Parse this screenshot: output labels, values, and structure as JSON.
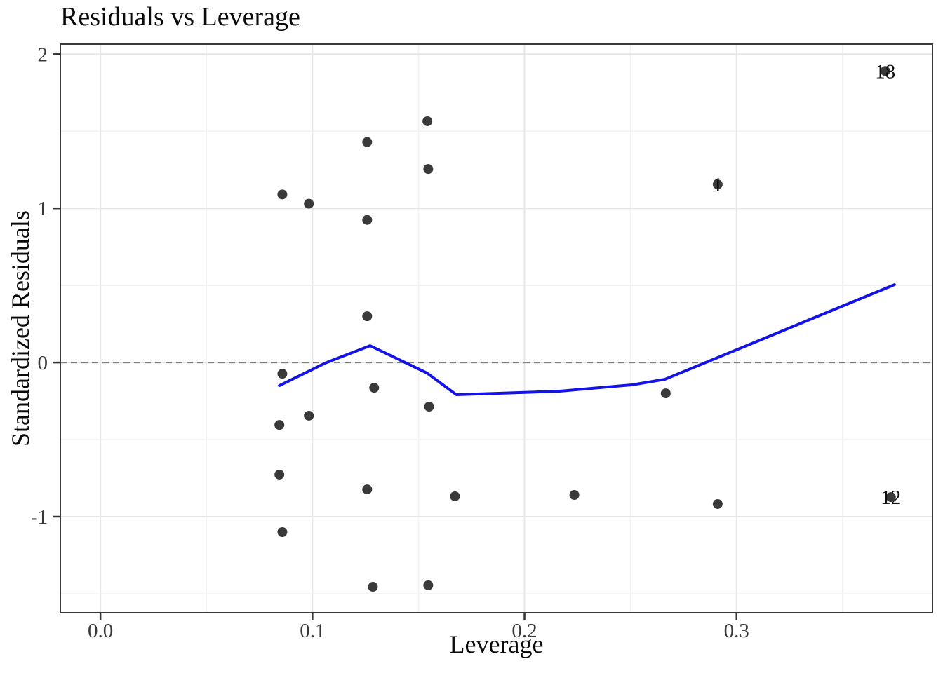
{
  "title": "Residuals vs Leverage",
  "axes": {
    "x_title": "Leverage",
    "y_title": "Standardized Residuals"
  },
  "chart_data": {
    "type": "scatter",
    "title": "Residuals vs Leverage",
    "xlabel": "Leverage",
    "ylabel": "Standardized Residuals",
    "xlim": [
      -0.0189,
      0.3924
    ],
    "ylim": [
      -1.623,
      2.065
    ],
    "grid": true,
    "x_ticks": {
      "values": [
        0.0,
        0.1,
        0.2,
        0.3
      ],
      "labels": [
        "0.0",
        "0.1",
        "0.2",
        "0.3"
      ],
      "minor": [
        0.05,
        0.15,
        0.25,
        0.35
      ]
    },
    "y_ticks": {
      "values": [
        -1,
        0,
        1,
        2
      ],
      "labels": [
        "-1",
        "0",
        "1",
        "2"
      ],
      "minor": [
        -1.5,
        -0.5,
        0.5,
        1.5
      ]
    },
    "reference_line_y": 0,
    "points": [
      [
        0.0858,
        1.09
      ],
      [
        0.0983,
        1.03
      ],
      [
        0.1258,
        1.43
      ],
      [
        0.1542,
        1.565
      ],
      [
        0.1546,
        1.255
      ],
      [
        0.1258,
        0.925
      ],
      [
        0.1258,
        0.3
      ],
      [
        0.0858,
        -0.073
      ],
      [
        0.1291,
        -0.164
      ],
      [
        0.155,
        -0.286
      ],
      [
        0.0983,
        -0.345
      ],
      [
        0.0844,
        -0.405
      ],
      [
        0.0844,
        -0.727
      ],
      [
        0.1258,
        -0.823
      ],
      [
        0.1672,
        -0.868
      ],
      [
        0.2235,
        -0.859
      ],
      [
        0.2666,
        -0.2
      ],
      [
        0.2911,
        -0.918
      ],
      [
        0.0858,
        -1.1
      ],
      [
        0.1285,
        -1.455
      ],
      [
        0.1546,
        -1.445
      ]
    ],
    "labeled_points": [
      {
        "label": "1",
        "x": 0.2911,
        "y": 1.155
      },
      {
        "label": "18",
        "x": 0.3701,
        "y": 1.891
      },
      {
        "label": "12",
        "x": 0.3728,
        "y": -0.873
      }
    ],
    "smooth_line": [
      [
        0.0844,
        -0.15
      ],
      [
        0.1066,
        0.0
      ],
      [
        0.1272,
        0.109
      ],
      [
        0.154,
        -0.068
      ],
      [
        0.1679,
        -0.209
      ],
      [
        0.2166,
        -0.186
      ],
      [
        0.2507,
        -0.145
      ],
      [
        0.2662,
        -0.109
      ],
      [
        0.3745,
        0.505
      ]
    ],
    "colors": {
      "point": "#3a3a3a",
      "smooth": "#1313e8",
      "reference": "#7e7e7e",
      "grid_major": "#e6e6e6",
      "grid_minor": "#f1f1f1",
      "panel_border": "#3a3a3a",
      "tick_mark": "#333333",
      "axis_text": "#383838",
      "label_text": "#101010",
      "background": "#ffffff"
    }
  }
}
